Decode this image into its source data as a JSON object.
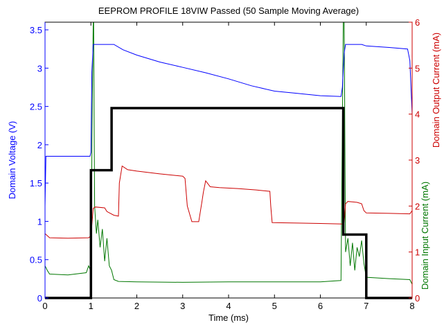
{
  "chart_data": {
    "type": "line",
    "title": "EEPROM PROFILE 18VIW Passed (50 Sample Moving Average)",
    "xlabel": "Time (ms)",
    "xlim": [
      0,
      8
    ],
    "x_ticks": [
      0,
      1,
      2,
      3,
      4,
      5,
      6,
      7,
      8
    ],
    "grid": false,
    "legend": "none",
    "left_axis": {
      "label": "Domain Voltage (V)",
      "ylim": [
        0,
        3.6
      ],
      "ticks": [
        0,
        0.5,
        1,
        1.5,
        2,
        2.5,
        3,
        3.5
      ],
      "tick_labels": [
        "0",
        "0.5",
        "1",
        "1.5",
        "2",
        "2.5",
        "3",
        "3.5"
      ],
      "color": "#0000ff"
    },
    "right_axis_outer": {
      "label": "Domain Output Current (mA)",
      "ylim": [
        0,
        6
      ],
      "ticks": [
        0,
        1,
        2,
        3,
        4,
        5,
        6
      ],
      "color": "#cc0000"
    },
    "right_axis_inner": {
      "label": "Domain Input Current (mA)",
      "color": "#007700"
    },
    "series": [
      {
        "id": "voltage",
        "axis": "left",
        "color": "#0000ff",
        "points": [
          [
            0,
            1.2
          ],
          [
            0.02,
            1.85
          ],
          [
            0.5,
            1.85
          ],
          [
            0.98,
            1.85
          ],
          [
            1.0,
            1.9
          ],
          [
            1.02,
            2.95
          ],
          [
            1.05,
            3.31
          ],
          [
            1.5,
            3.31
          ],
          [
            1.7,
            3.24
          ],
          [
            2,
            3.17
          ],
          [
            2.5,
            3.08
          ],
          [
            3,
            3.01
          ],
          [
            3.5,
            2.94
          ],
          [
            4,
            2.86
          ],
          [
            4.5,
            2.77
          ],
          [
            5,
            2.7
          ],
          [
            5.5,
            2.67
          ],
          [
            6,
            2.64
          ],
          [
            6.45,
            2.63
          ],
          [
            6.48,
            2.75
          ],
          [
            6.52,
            3.2
          ],
          [
            6.55,
            3.31
          ],
          [
            6.9,
            3.31
          ],
          [
            7,
            3.29
          ],
          [
            7.5,
            3.27
          ],
          [
            7.9,
            3.25
          ],
          [
            7.95,
            3.1
          ],
          [
            8.0,
            2.4
          ]
        ]
      },
      {
        "id": "output_current",
        "axis": "right",
        "color": "#cc0000",
        "points": [
          [
            0,
            1.4
          ],
          [
            0.1,
            1.31
          ],
          [
            0.5,
            1.3
          ],
          [
            0.95,
            1.31
          ],
          [
            1.0,
            1.35
          ],
          [
            1.05,
            1.95
          ],
          [
            1.1,
            1.98
          ],
          [
            1.3,
            1.96
          ],
          [
            1.35,
            1.88
          ],
          [
            1.5,
            1.8
          ],
          [
            1.6,
            1.78
          ],
          [
            1.62,
            2.5
          ],
          [
            1.68,
            2.87
          ],
          [
            1.8,
            2.79
          ],
          [
            2,
            2.76
          ],
          [
            2.5,
            2.7
          ],
          [
            3,
            2.65
          ],
          [
            3.05,
            2.6
          ],
          [
            3.1,
            2.0
          ],
          [
            3.2,
            1.66
          ],
          [
            3.35,
            1.66
          ],
          [
            3.42,
            2.1
          ],
          [
            3.45,
            2.3
          ],
          [
            3.5,
            2.55
          ],
          [
            3.6,
            2.42
          ],
          [
            3.8,
            2.4
          ],
          [
            4.2,
            2.38
          ],
          [
            4.6,
            2.35
          ],
          [
            4.9,
            2.32
          ],
          [
            4.92,
            2.0
          ],
          [
            4.95,
            1.64
          ],
          [
            5.5,
            1.63
          ],
          [
            6,
            1.62
          ],
          [
            6.48,
            1.61
          ],
          [
            6.52,
            1.65
          ],
          [
            6.55,
            2.05
          ],
          [
            6.6,
            2.1
          ],
          [
            6.8,
            2.08
          ],
          [
            6.9,
            2.05
          ],
          [
            6.95,
            1.9
          ],
          [
            7,
            1.85
          ],
          [
            7.5,
            1.84
          ],
          [
            7.95,
            1.83
          ],
          [
            8,
            1.9
          ]
        ]
      },
      {
        "id": "input_current",
        "axis": "right",
        "color": "#007700",
        "points": [
          [
            0,
            0.7
          ],
          [
            0.05,
            0.6
          ],
          [
            0.1,
            0.52
          ],
          [
            0.5,
            0.5
          ],
          [
            0.9,
            0.55
          ],
          [
            0.95,
            0.7
          ],
          [
            1.0,
            0.58
          ],
          [
            1.03,
            4.2
          ],
          [
            1.05,
            6.0
          ],
          [
            1.06,
            6.0
          ],
          [
            1.08,
            2.0
          ],
          [
            1.12,
            1.4
          ],
          [
            1.15,
            1.7
          ],
          [
            1.2,
            1.1
          ],
          [
            1.25,
            1.5
          ],
          [
            1.3,
            0.8
          ],
          [
            1.35,
            1.3
          ],
          [
            1.4,
            0.7
          ],
          [
            1.45,
            0.6
          ],
          [
            1.5,
            0.4
          ],
          [
            1.6,
            0.36
          ],
          [
            2,
            0.35
          ],
          [
            3,
            0.34
          ],
          [
            4,
            0.35
          ],
          [
            5,
            0.35
          ],
          [
            6,
            0.35
          ],
          [
            6.45,
            0.38
          ],
          [
            6.5,
            6.0
          ],
          [
            6.52,
            6.0
          ],
          [
            6.55,
            1.0
          ],
          [
            6.6,
            1.3
          ],
          [
            6.65,
            0.7
          ],
          [
            6.7,
            1.2
          ],
          [
            6.75,
            0.6
          ],
          [
            6.8,
            1.1
          ],
          [
            6.85,
            0.9
          ],
          [
            6.9,
            1.25
          ],
          [
            6.95,
            0.75
          ],
          [
            7,
            0.45
          ],
          [
            7.5,
            0.42
          ],
          [
            7.95,
            0.4
          ],
          [
            8,
            0.3
          ]
        ]
      },
      {
        "id": "step_profile",
        "axis": "right",
        "color": "#000000",
        "points": [
          [
            0,
            0
          ],
          [
            1.0,
            0
          ],
          [
            1.0,
            2.78
          ],
          [
            1.45,
            2.78
          ],
          [
            1.45,
            4.13
          ],
          [
            6.5,
            4.13
          ],
          [
            6.5,
            1.38
          ],
          [
            7.0,
            1.38
          ],
          [
            7.0,
            0
          ],
          [
            8.0,
            0
          ]
        ]
      }
    ]
  }
}
